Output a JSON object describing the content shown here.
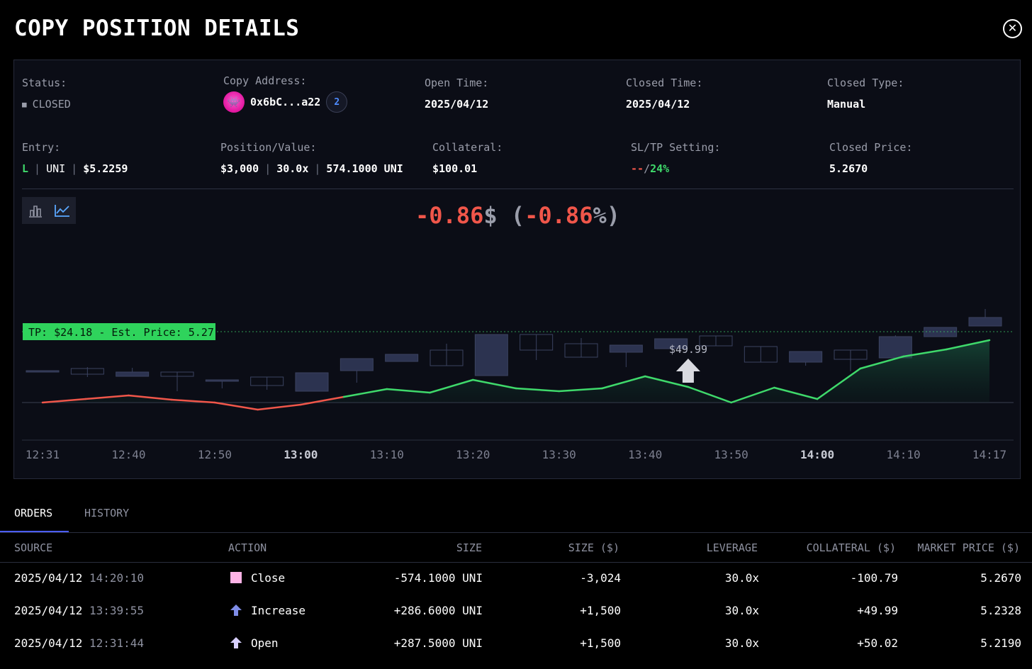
{
  "header": {
    "title": "COPY POSITION DETAILS"
  },
  "info": {
    "status_label": "Status:",
    "status_value": "CLOSED",
    "copy_address_label": "Copy Address:",
    "copy_address_value": "0x6bC...a22",
    "chain_badge": "2",
    "open_time_label": "Open Time:",
    "open_time_value": "2025/04/12",
    "closed_time_label": "Closed Time:",
    "closed_time_value": "2025/04/12",
    "closed_type_label": "Closed Type:",
    "closed_type_value": "Manual",
    "entry_label": "Entry:",
    "entry_side": "L",
    "entry_asset": "UNI",
    "entry_price": "$5.2259",
    "position_label": "Position/Value:",
    "position_size": "$3,000",
    "position_leverage": "30.0x",
    "position_amount": "574.1000 UNI",
    "collateral_label": "Collateral:",
    "collateral_value": "$100.01",
    "sltp_label": "SL/TP Setting:",
    "sl_value": "--",
    "sltp_sep": "/",
    "tp_value": "24%",
    "closed_price_label": "Closed Price:",
    "closed_price_value": "5.2670"
  },
  "pnl": {
    "value": "-0.86",
    "unit": "$",
    "open": " (",
    "pct": "-0.86",
    "pct_unit": "%",
    "close": ")"
  },
  "chart_data": {
    "type": "candlestick",
    "tp_label": "TP: $24.18 - Est. Price: 5.27",
    "marker_label": "$49.99",
    "x_ticks": [
      "12:31",
      "12:40",
      "12:50",
      "13:00",
      "13:10",
      "13:20",
      "13:30",
      "13:40",
      "13:50",
      "14:00",
      "14:10",
      "14:17"
    ],
    "bold_ticks": [
      "13:00",
      "14:00"
    ],
    "candles": [
      {
        "o": 0.45,
        "c": 0.45,
        "h": 0.45,
        "l": 0.45,
        "up": false
      },
      {
        "o": 0.4,
        "c": 0.48,
        "h": 0.5,
        "l": 0.36,
        "up": true
      },
      {
        "o": 0.43,
        "c": 0.37,
        "h": 0.49,
        "l": 0.37,
        "up": false
      },
      {
        "o": 0.43,
        "c": 0.37,
        "h": 0.43,
        "l": 0.16,
        "up": true
      },
      {
        "o": 0.32,
        "c": 0.3,
        "h": 0.32,
        "l": 0.2,
        "up": false
      },
      {
        "o": 0.24,
        "c": 0.36,
        "h": 0.36,
        "l": 0.18,
        "up": true
      },
      {
        "o": 0.42,
        "c": 0.16,
        "h": 0.42,
        "l": 0.16,
        "up": false
      },
      {
        "o": 0.45,
        "c": 0.62,
        "h": 0.62,
        "l": 0.28,
        "up": false
      },
      {
        "o": 0.58,
        "c": 0.68,
        "h": 0.68,
        "l": 0.58,
        "up": false
      },
      {
        "o": 0.52,
        "c": 0.74,
        "h": 0.83,
        "l": 0.52,
        "up": true
      },
      {
        "o": 0.38,
        "c": 0.96,
        "h": 0.96,
        "l": 0.38,
        "up": false
      },
      {
        "o": 0.74,
        "c": 0.96,
        "h": 0.96,
        "l": 0.6,
        "up": true
      },
      {
        "o": 0.64,
        "c": 0.83,
        "h": 0.91,
        "l": 0.64,
        "up": true
      },
      {
        "o": 0.71,
        "c": 0.81,
        "h": 0.81,
        "l": 0.5,
        "up": false
      },
      {
        "o": 0.76,
        "c": 0.9,
        "h": 0.9,
        "l": 0.76,
        "up": false
      },
      {
        "o": 0.8,
        "c": 0.94,
        "h": 0.94,
        "l": 0.8,
        "up": true
      },
      {
        "o": 0.57,
        "c": 0.79,
        "h": 0.79,
        "l": 0.57,
        "up": true
      },
      {
        "o": 0.57,
        "c": 0.72,
        "h": 0.72,
        "l": 0.52,
        "up": false
      },
      {
        "o": 0.61,
        "c": 0.74,
        "h": 0.74,
        "l": 0.44,
        "up": true
      },
      {
        "o": 0.63,
        "c": 0.93,
        "h": 0.95,
        "l": 0.63,
        "up": false
      },
      {
        "o": 0.93,
        "c": 1.06,
        "h": 1.06,
        "l": 0.93,
        "up": false
      },
      {
        "o": 1.08,
        "c": 1.2,
        "h": 1.32,
        "l": 1.08,
        "up": false
      }
    ],
    "pnl_line": [
      0.0,
      0.05,
      0.1,
      0.04,
      0.0,
      -0.1,
      -0.03,
      0.08,
      0.19,
      0.14,
      0.32,
      0.2,
      0.16,
      0.2,
      0.37,
      0.22,
      0.0,
      0.21,
      0.05,
      0.48,
      0.65,
      0.75,
      0.88
    ],
    "tp_level": 1.0,
    "marker_index": 15
  },
  "tabs": {
    "orders": "ORDERS",
    "history": "HISTORY"
  },
  "table": {
    "headers": [
      "SOURCE",
      "ACTION",
      "SIZE",
      "SIZE ($)",
      "LEVERAGE",
      "COLLATERAL ($)",
      "MARKET PRICE ($)"
    ],
    "rows": [
      {
        "date": "2025/04/12",
        "time": "14:20:10",
        "action": "Close",
        "icon": "close-square-icon",
        "icon_color": "#ffb3e6",
        "size": "-574.1000 UNI",
        "size_usd": "-3,024",
        "leverage": "30.0x",
        "collateral": "-100.79",
        "price": "5.2670"
      },
      {
        "date": "2025/04/12",
        "time": "13:39:55",
        "action": "Increase",
        "icon": "increase-arrow-icon",
        "icon_color": "#7f8de8",
        "size": "+286.6000 UNI",
        "size_usd": "+1,500",
        "leverage": "30.0x",
        "collateral": "+49.99",
        "price": "5.2328"
      },
      {
        "date": "2025/04/12",
        "time": "12:31:44",
        "action": "Open",
        "icon": "open-arrow-icon",
        "icon_color": "#d8d0ff",
        "size": "+287.5000 UNI",
        "size_usd": "+1,500",
        "leverage": "30.0x",
        "collateral": "+50.02",
        "price": "5.2190"
      }
    ]
  },
  "colors": {
    "profit": "#3fd96b",
    "loss": "#f0564a",
    "candle": "#2c3350",
    "accent": "#4b5dff"
  }
}
